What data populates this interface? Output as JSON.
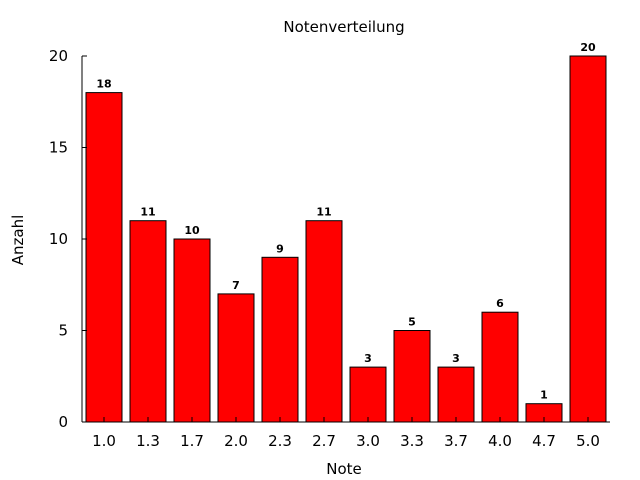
{
  "chart_data": {
    "type": "bar",
    "title": "Notenverteilung",
    "xlabel": "Note",
    "ylabel": "Anzahl",
    "categories": [
      "1.0",
      "1.3",
      "1.7",
      "2.0",
      "2.3",
      "2.7",
      "3.0",
      "3.3",
      "3.7",
      "4.0",
      "4.7",
      "5.0"
    ],
    "values": [
      18,
      11,
      10,
      7,
      9,
      11,
      3,
      5,
      3,
      6,
      1,
      20
    ],
    "ylim": [
      0,
      20
    ],
    "yticks": [
      0,
      5,
      10,
      15,
      20
    ],
    "grid": false,
    "bar_color": "#ff0000",
    "show_value_labels": true
  }
}
